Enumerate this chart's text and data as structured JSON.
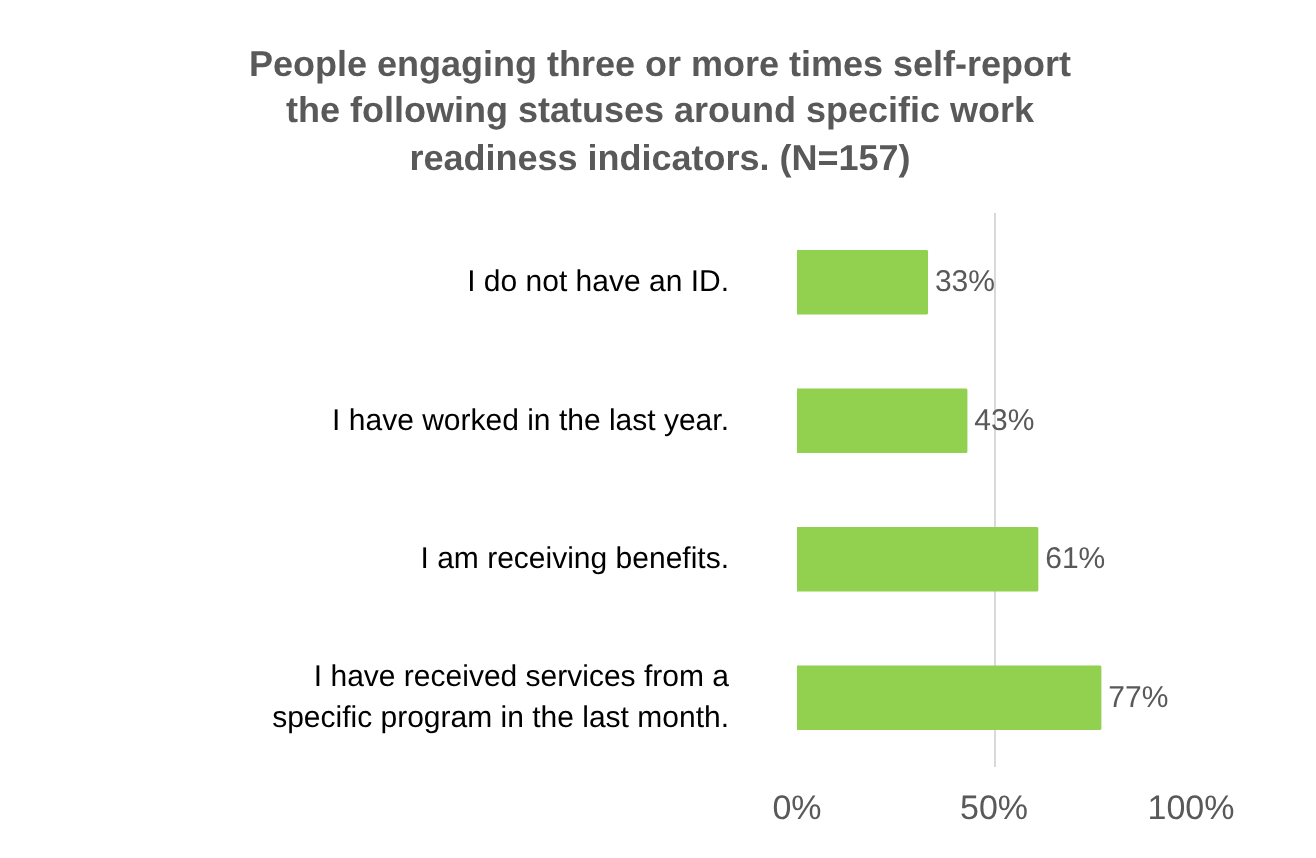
{
  "chart_data": {
    "type": "bar",
    "orientation": "horizontal",
    "title": "People engaging three or more times self-report\nthe following statuses around specific work\nreadiness indicators.  (N=157)",
    "categories": [
      "I do not have an ID.",
      "I have worked in the last year.",
      "I am receiving benefits.",
      "I have received services from a\nspecific program in the last month."
    ],
    "values": [
      33,
      43,
      61,
      77
    ],
    "color": "#92d050",
    "value_labels": [
      "33%",
      "43%",
      "61%",
      "77%"
    ],
    "xlim": [
      0,
      100
    ],
    "xticks": [
      {
        "value": 0,
        "label": "0%"
      },
      {
        "value": 50,
        "label": "50%"
      },
      {
        "value": 100,
        "label": "100%"
      }
    ],
    "grid": "x",
    "legend": false
  }
}
